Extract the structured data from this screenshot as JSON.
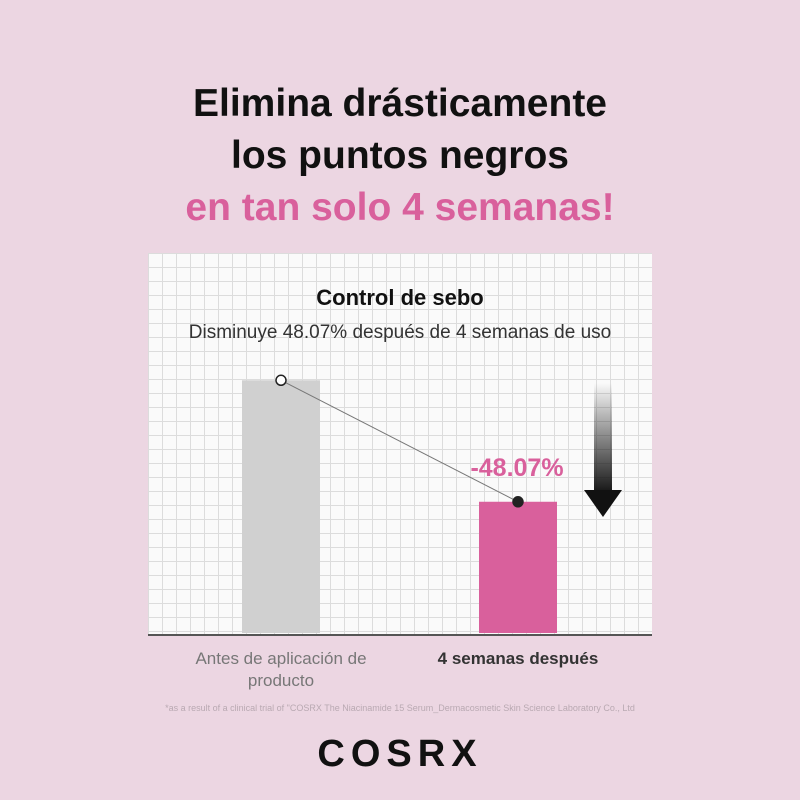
{
  "headline": {
    "line1": "Elimina drásticamente",
    "line2": "los puntos negros",
    "line3": "en tan solo 4 semanas!"
  },
  "chart_data": {
    "type": "bar",
    "title": "Control de sebo",
    "subtitle": "Disminuye 48.07% después de 4 semanas de uso",
    "categories": [
      "Antes de aplicación de producto",
      "4 semanas después"
    ],
    "values": [
      100,
      51.93
    ],
    "ylim": [
      0,
      110
    ],
    "colors": [
      "#d0d0d0",
      "#d9609c"
    ],
    "annotation": "-48.07%",
    "grid": true,
    "trend_arrow": "down"
  },
  "footnote": "*as a result of a clinical trial of \"COSRX The Niacinamide 15 Serum_Dermacosmetic Skin Science Laboratory Co., Ltd",
  "brand": "COSRX",
  "colors": {
    "background": "#ecd6e2",
    "accent": "#d9609c"
  }
}
